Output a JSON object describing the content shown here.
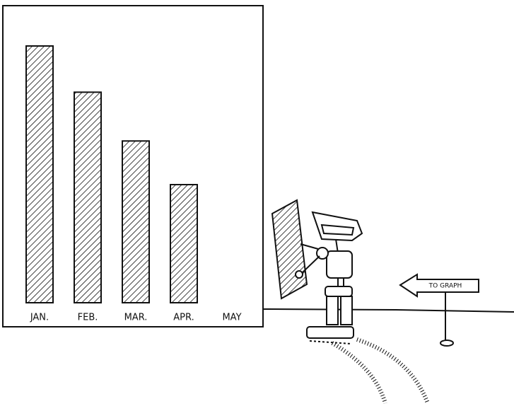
{
  "chart_data": {
    "type": "bar",
    "categories": [
      "JAN.",
      "FEB.",
      "MAR.",
      "APR.",
      "MAY"
    ],
    "values": [
      100,
      82,
      63,
      46,
      null
    ],
    "color": "#111111",
    "ylim": [
      0,
      100
    ]
  },
  "sign": {
    "label": "TO GRAPH"
  }
}
